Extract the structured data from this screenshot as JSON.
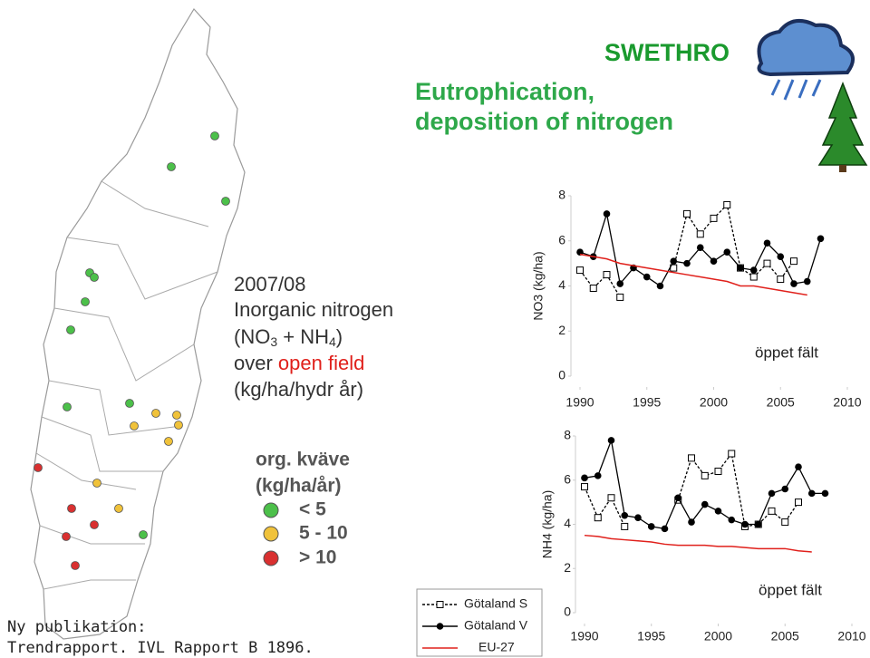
{
  "header": {
    "brand": "SWETHRO",
    "title_line1": "Eutrophication,",
    "title_line2": "deposition of nitrogen"
  },
  "map_text": {
    "year": "2007/08",
    "line2": "Inorganic nitrogen",
    "formula": {
      "open": "(NO",
      "sub1": "3",
      "mid": " + NH",
      "sub2": "4",
      "close": ")"
    },
    "line4_a": "over ",
    "line4_b": "open field",
    "line5": "(kg/ha/hydr år)"
  },
  "map_legend": {
    "title": "org. kväve",
    "unit": "(kg/ha/år)",
    "items": [
      "< 5",
      "5 - 10",
      "> 10"
    ]
  },
  "footer": {
    "line1": "Ny publikation:",
    "line2": "Trendrapport. IVL Rapport B 1896."
  },
  "chart_data": [
    {
      "type": "line",
      "y_label": "NO3 (kg/ha)",
      "annotation": "öppet fält",
      "x": [
        1990,
        1991,
        1992,
        1993,
        1994,
        1995,
        1996,
        1997,
        1998,
        1999,
        2000,
        2001,
        2002,
        2003,
        2004,
        2005,
        2006,
        2007,
        2008
      ],
      "xlim": [
        1990,
        2010
      ],
      "xticks": [
        1990,
        1995,
        2000,
        2005,
        2010
      ],
      "ylim": [
        0,
        8
      ],
      "yticks": [
        0,
        2,
        4,
        6,
        8
      ],
      "series": [
        {
          "name": "Götaland S",
          "color": "#000000",
          "dash": true,
          "marker": "open-square",
          "values": [
            4.7,
            3.9,
            4.5,
            3.5,
            null,
            null,
            null,
            4.8,
            7.2,
            6.3,
            7.0,
            7.6,
            4.8,
            4.4,
            5.0,
            4.3,
            5.1,
            null,
            null
          ]
        },
        {
          "name": "Götaland V",
          "color": "#000000",
          "dash": false,
          "marker": "circle",
          "values": [
            5.5,
            5.3,
            7.2,
            4.1,
            4.8,
            4.4,
            4.0,
            5.1,
            5.0,
            5.7,
            5.1,
            5.5,
            4.8,
            4.7,
            5.9,
            5.3,
            4.1,
            4.2,
            6.1
          ]
        },
        {
          "name": "EU-27",
          "color": "#e0201b",
          "dash": false,
          "marker": null,
          "values": [
            5.4,
            5.3,
            5.2,
            5.0,
            4.9,
            4.8,
            4.7,
            4.6,
            4.5,
            4.4,
            4.3,
            4.2,
            4.0,
            4.0,
            3.9,
            3.8,
            3.7,
            3.6,
            null
          ]
        }
      ]
    },
    {
      "type": "line",
      "y_label": "NH4 (kg/ha)",
      "annotation": "öppet fält",
      "x": [
        1990,
        1991,
        1992,
        1993,
        1994,
        1995,
        1996,
        1997,
        1998,
        1999,
        2000,
        2001,
        2002,
        2003,
        2004,
        2005,
        2006,
        2007,
        2008
      ],
      "xlim": [
        1990,
        2010
      ],
      "xticks": [
        1990,
        1995,
        2000,
        2005,
        2010
      ],
      "ylim": [
        0,
        8
      ],
      "yticks": [
        0,
        2,
        4,
        6,
        8
      ],
      "series": [
        {
          "color": "#000000",
          "dash": true,
          "marker": "open-square",
          "values": [
            5.7,
            4.3,
            5.2,
            3.9,
            null,
            null,
            null,
            5.1,
            7.0,
            6.2,
            6.4,
            7.2,
            3.9,
            4.0,
            4.6,
            4.1,
            5.0,
            null,
            null
          ]
        },
        {
          "color": "#000000",
          "dash": false,
          "marker": "circle",
          "values": [
            6.1,
            6.2,
            7.8,
            4.4,
            4.3,
            3.9,
            3.8,
            5.2,
            4.1,
            4.9,
            4.6,
            4.2,
            4.0,
            4.0,
            5.4,
            5.6,
            6.6,
            5.4,
            5.4
          ]
        },
        {
          "color": "#e0201b",
          "dash": false,
          "marker": null,
          "values": [
            3.5,
            3.45,
            3.35,
            3.3,
            3.25,
            3.2,
            3.1,
            3.05,
            3.05,
            3.05,
            3.0,
            3.0,
            2.95,
            2.9,
            2.9,
            2.9,
            2.8,
            2.75,
            null
          ]
        }
      ]
    }
  ]
}
